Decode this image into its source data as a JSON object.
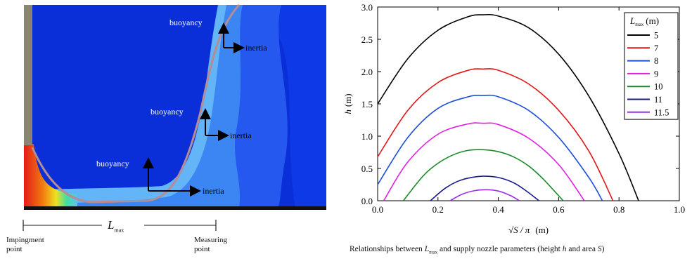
{
  "simulation": {
    "arrow_labels": {
      "buoyancy_top": "buoyancy",
      "inertia_top": "inertia",
      "buoyancy_mid": "buoyancy",
      "inertia_mid": "inertia",
      "buoyancy_low": "buoyancy",
      "inertia_low": "inertia"
    },
    "span_label": "L",
    "span_label_sub": "max",
    "start_label": [
      "Impingment",
      "point"
    ],
    "end_label": [
      "Measuring",
      "point"
    ],
    "colors": {
      "background": "#0a2fd8",
      "layer1": "#1e5ef0",
      "layer2": "#3c86f4",
      "layer3": "#64b4f8",
      "wall": "#8a8470",
      "floor": "#111111",
      "streamline": "#c88080"
    }
  },
  "caption": {
    "before": "Relationships between ",
    "sym": "L",
    "sub": "max",
    "after": " and supply nozzle parameters (height ",
    "h": "h",
    "mid": " and area ",
    "s": "S",
    "end": ")"
  },
  "chart_data": {
    "type": "line",
    "xlabel_math": "√S / π",
    "xlabel_unit": "(m)",
    "ylabel_sym": "h",
    "ylabel_unit": "(m)",
    "xlim": [
      0.0,
      1.0
    ],
    "ylim": [
      0.0,
      3.0
    ],
    "xticks": [
      "0.0",
      "0.2",
      "0.4",
      "0.6",
      "0.8",
      "1.0"
    ],
    "yticks": [
      "0.0",
      "0.5",
      "1.0",
      "1.5",
      "2.0",
      "2.5",
      "3.0"
    ],
    "legend_title_sym": "L",
    "legend_title_sub": "max",
    "legend_title_unit": "(m)",
    "legend_position": "top-right",
    "series": [
      {
        "name": "5",
        "color": "#000000",
        "x": [
          0.0,
          0.1,
          0.2,
          0.3,
          0.35,
          0.4,
          0.5,
          0.6,
          0.7,
          0.8,
          0.865
        ],
        "y": [
          1.5,
          2.2,
          2.64,
          2.85,
          2.88,
          2.86,
          2.68,
          2.27,
          1.62,
          0.73,
          0.0
        ]
      },
      {
        "name": "7",
        "color": "#e01818",
        "x": [
          0.0,
          0.1,
          0.2,
          0.3,
          0.35,
          0.4,
          0.5,
          0.6,
          0.7,
          0.78
        ],
        "y": [
          0.68,
          1.4,
          1.83,
          2.02,
          2.04,
          2.02,
          1.81,
          1.4,
          0.77,
          0.0
        ]
      },
      {
        "name": "8",
        "color": "#1a4fd8",
        "x": [
          0.0,
          0.1,
          0.2,
          0.3,
          0.35,
          0.4,
          0.5,
          0.6,
          0.7,
          0.745
        ],
        "y": [
          0.25,
          0.98,
          1.43,
          1.61,
          1.63,
          1.61,
          1.4,
          0.98,
          0.36,
          0.0
        ]
      },
      {
        "name": "9",
        "color": "#e020e0",
        "x": [
          0.02,
          0.1,
          0.2,
          0.3,
          0.35,
          0.4,
          0.5,
          0.6,
          0.685
        ],
        "y": [
          0.0,
          0.6,
          1.03,
          1.19,
          1.2,
          1.18,
          0.97,
          0.56,
          0.0
        ]
      },
      {
        "name": "10",
        "color": "#1a8a2a",
        "x": [
          0.085,
          0.15,
          0.2,
          0.25,
          0.3,
          0.35,
          0.4,
          0.45,
          0.5,
          0.55,
          0.615
        ],
        "y": [
          0.0,
          0.38,
          0.58,
          0.71,
          0.78,
          0.79,
          0.76,
          0.68,
          0.54,
          0.33,
          0.0
        ]
      },
      {
        "name": "11",
        "color": "#1a1a8c",
        "x": [
          0.175,
          0.22,
          0.26,
          0.3,
          0.35,
          0.4,
          0.45,
          0.49,
          0.535
        ],
        "y": [
          0.0,
          0.18,
          0.29,
          0.35,
          0.38,
          0.36,
          0.28,
          0.16,
          0.0
        ]
      },
      {
        "name": "11.5",
        "color": "#9a30e8",
        "x": [
          0.24,
          0.28,
          0.32,
          0.36,
          0.4,
          0.44,
          0.47
        ],
        "y": [
          0.0,
          0.1,
          0.155,
          0.17,
          0.15,
          0.08,
          0.0
        ]
      }
    ]
  }
}
